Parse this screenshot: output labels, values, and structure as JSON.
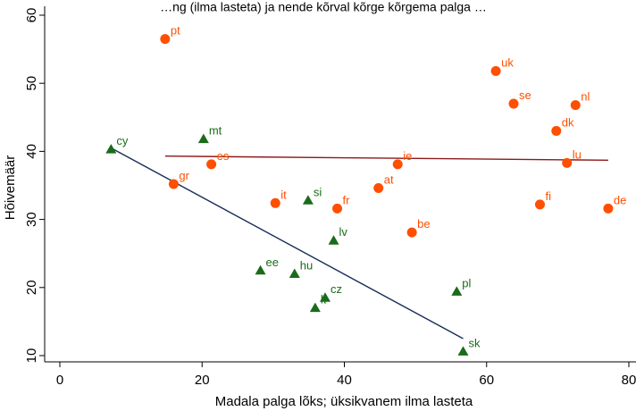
{
  "chart_data": {
    "type": "scatter",
    "title": "…ng (ilma lasteta) ja nende kõrval kõrge kõrgema palga …",
    "xlabel": "Madala palga lõks; üksikvanem ilma lasteta",
    "ylabel": "Hõivemäär",
    "xlim": [
      0,
      80
    ],
    "ylim": [
      10,
      60
    ],
    "xticks": [
      0,
      20,
      40,
      60,
      80
    ],
    "yticks": [
      10,
      20,
      30,
      40,
      50,
      60
    ],
    "grid": false,
    "colors": {
      "group_a": "#ff4f00",
      "group_b": "#1a6b1a",
      "line_a": "#8b1a1a",
      "line_b": "#1a2e5c"
    },
    "series": [
      {
        "marker": "circle",
        "color": "#ff4f00",
        "points": [
          {
            "label": "pt",
            "x": 14.8,
            "y": 56.5
          },
          {
            "label": "uk",
            "x": 61.3,
            "y": 51.8
          },
          {
            "label": "se",
            "x": 63.8,
            "y": 47.0
          },
          {
            "label": "nl",
            "x": 72.5,
            "y": 46.8
          },
          {
            "label": "dk",
            "x": 69.8,
            "y": 43.0
          },
          {
            "label": "lu",
            "x": 71.3,
            "y": 38.3
          },
          {
            "label": "es",
            "x": 21.3,
            "y": 38.1
          },
          {
            "label": "ie",
            "x": 47.5,
            "y": 38.1
          },
          {
            "label": "gr",
            "x": 16.0,
            "y": 35.2
          },
          {
            "label": "at",
            "x": 44.8,
            "y": 34.6
          },
          {
            "label": "fi",
            "x": 67.5,
            "y": 32.2
          },
          {
            "label": "de",
            "x": 77.1,
            "y": 31.6
          },
          {
            "label": "it",
            "x": 30.3,
            "y": 32.4
          },
          {
            "label": "fr",
            "x": 39.0,
            "y": 31.6
          },
          {
            "label": "be",
            "x": 49.5,
            "y": 28.1
          }
        ]
      },
      {
        "marker": "triangle",
        "color": "#1a6b1a",
        "points": [
          {
            "label": "cy",
            "x": 7.2,
            "y": 40.3
          },
          {
            "label": "mt",
            "x": 20.2,
            "y": 41.8
          },
          {
            "label": "si",
            "x": 34.9,
            "y": 32.8
          },
          {
            "label": "lv",
            "x": 38.5,
            "y": 26.9
          },
          {
            "label": "ee",
            "x": 28.2,
            "y": 22.5
          },
          {
            "label": "hu",
            "x": 33.0,
            "y": 22.0
          },
          {
            "label": "cz",
            "x": 37.3,
            "y": 18.5
          },
          {
            "label": "lt",
            "x": 35.9,
            "y": 17.0
          },
          {
            "label": "pl",
            "x": 55.8,
            "y": 19.4
          },
          {
            "label": "sk",
            "x": 56.7,
            "y": 10.6
          }
        ]
      }
    ],
    "fit_lines": [
      {
        "color": "#8b1a1a",
        "x": [
          14.8,
          77.1
        ],
        "y": [
          39.3,
          38.7
        ]
      },
      {
        "color": "#1a2e5c",
        "x": [
          7.2,
          56.7
        ],
        "y": [
          40.5,
          12.5
        ]
      }
    ]
  }
}
